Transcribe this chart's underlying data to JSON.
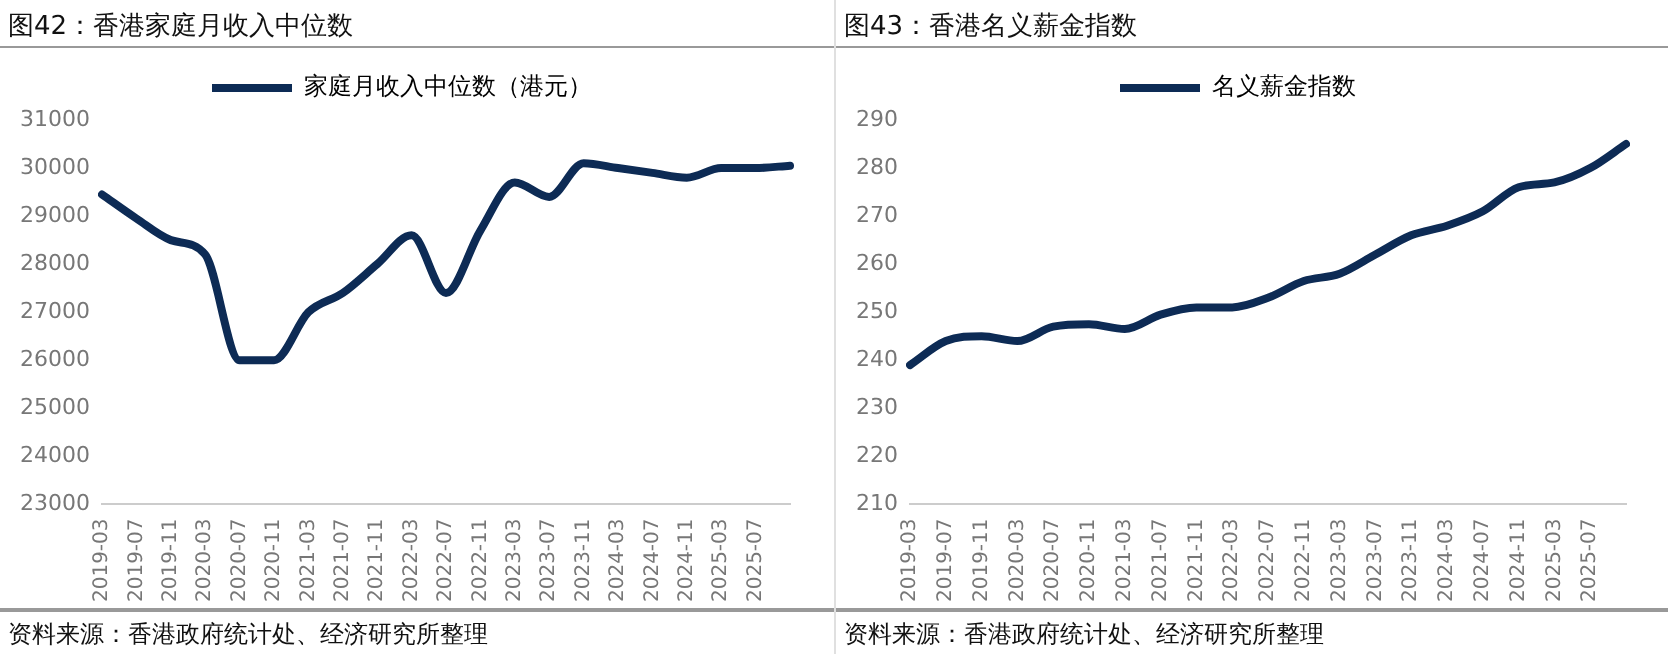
{
  "chart_data": [
    {
      "type": "line",
      "title": "图42：香港家庭月收入中位数",
      "categories": [
        "2019-03",
        "2019-07",
        "2019-11",
        "2020-03",
        "2020-07",
        "2020-11",
        "2021-03",
        "2021-07",
        "2021-11",
        "2022-03",
        "2022-07",
        "2022-11",
        "2023-03",
        "2023-07",
        "2023-11",
        "2024-03",
        "2024-07",
        "2024-11",
        "2025-03",
        "2025-07",
        null
      ],
      "series": [
        {
          "name": "家庭月收入中位数（港元）",
          "color": "#0d2b55",
          "values": [
            29450,
            28950,
            28500,
            28200,
            26000,
            26000,
            27000,
            27400,
            28000,
            28600,
            27400,
            28700,
            29700,
            29400,
            30100,
            30000,
            29900,
            29800,
            30000,
            30000,
            30050
          ]
        }
      ],
      "ylim": [
        23000,
        31000
      ],
      "yticks": [
        23000,
        24000,
        25000,
        26000,
        27000,
        28000,
        29000,
        30000,
        31000
      ],
      "legend": "top",
      "grid": false,
      "marker": "none",
      "line_style": "solid",
      "annotations": [
        "资料来源：香港政府统计处、经济研究所整理"
      ]
    },
    {
      "type": "line",
      "title": "图43：香港名义薪金指数",
      "categories": [
        "2019-03",
        "2019-07",
        "2019-11",
        "2020-03",
        "2020-07",
        "2020-11",
        "2021-03",
        "2021-07",
        "2021-11",
        "2022-03",
        "2022-07",
        "2022-11",
        "2023-03",
        "2023-07",
        "2023-11",
        "2024-03",
        "2024-07",
        "2024-11",
        "2025-03",
        "2025-07",
        null
      ],
      "series": [
        {
          "name": "名义薪金指数",
          "color": "#0d2b55",
          "values": [
            239,
            244,
            245,
            244,
            247,
            247.5,
            246.5,
            249.5,
            251,
            251,
            253,
            256.5,
            258,
            262,
            266,
            268,
            271,
            276,
            277,
            280,
            285
          ]
        }
      ],
      "ylim": [
        210,
        290
      ],
      "yticks": [
        210,
        220,
        230,
        240,
        250,
        260,
        270,
        280,
        290
      ],
      "legend": "top",
      "grid": false,
      "marker": "none",
      "line_style": "solid",
      "annotations": [
        "资料来源：香港政府统计处、经济研究所整理"
      ]
    }
  ]
}
